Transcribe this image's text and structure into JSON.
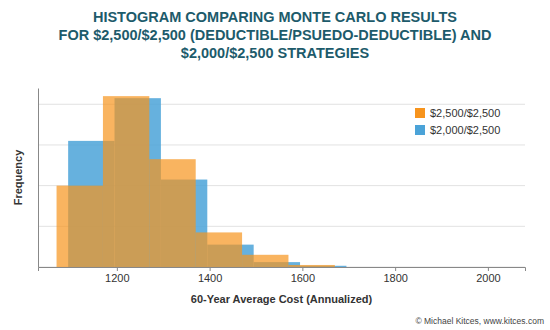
{
  "chart_data": {
    "type": "histogram",
    "title": [
      "HISTOGRAM COMPARING MONTE CARLO RESULTS",
      "FOR $2,500/$2,500 (DEDUCTIBLE/PSUEDO-DEDUCTIBLE) AND",
      "$2,000/$2,500 STRATEGIES"
    ],
    "x_label": "60-Year Average Cost (Annualized)",
    "y_label": "Frequency",
    "annotations": [
      "© Michael Kitces, www.kitces.com"
    ],
    "series": [
      {
        "name": "$2,500/$2,500",
        "color": "#f7941d",
        "bins": [
          1070,
          1170,
          1270,
          1370,
          1470,
          1570,
          1670
        ],
        "values": [
          200,
          420,
          265,
          85,
          30,
          5
        ]
      },
      {
        "name": "$2,000/$2,500",
        "color": "#4ba3d8",
        "bins": [
          1095,
          1195,
          1295,
          1395,
          1495,
          1595,
          1695
        ],
        "values": [
          310,
          415,
          215,
          55,
          12,
          3
        ]
      }
    ],
    "xlim": [
      1030,
      2080
    ],
    "xticks": [
      1200,
      1400,
      1600,
      1800,
      2000
    ],
    "ylim": [
      0,
      440
    ],
    "yticks": [
      0,
      100,
      200,
      300,
      400
    ],
    "grid": true,
    "legend": "upper right",
    "tick_labels": "x"
  }
}
